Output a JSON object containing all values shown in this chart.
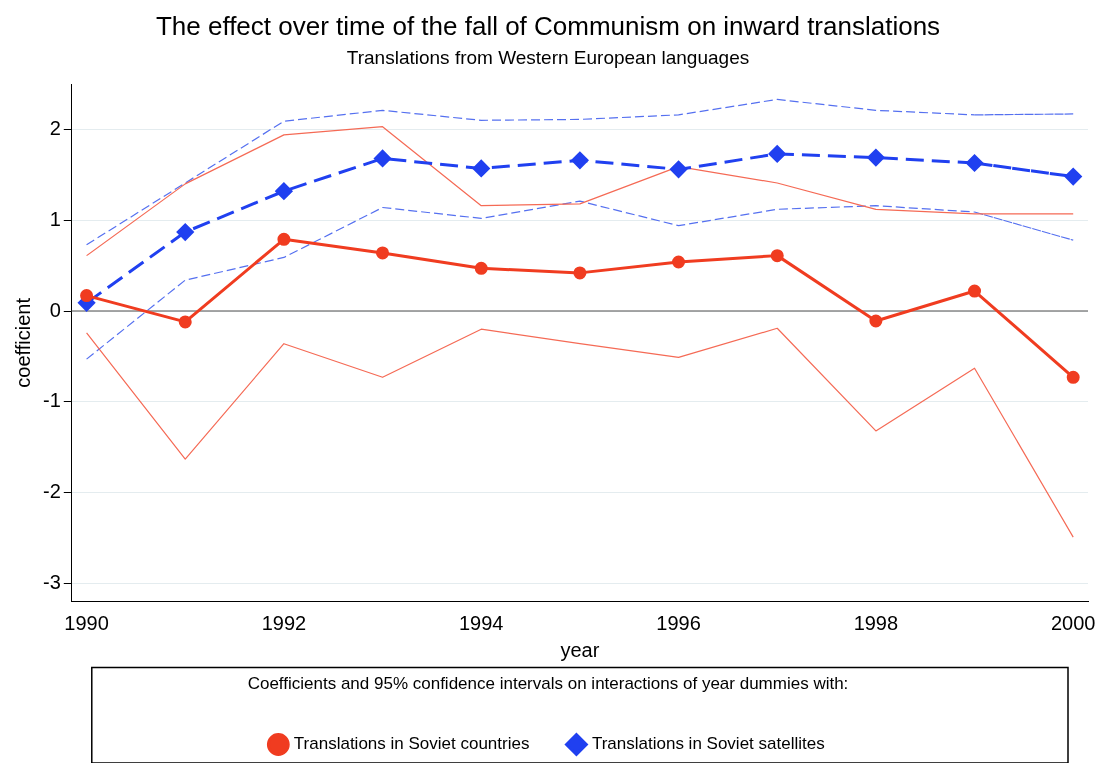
{
  "chart_data": {
    "type": "line",
    "title": "The effect over time of the fall of Communism on inward translations",
    "subtitle": "Translations from Western European languages",
    "xlabel": "year",
    "ylabel": "coefficient",
    "legend_title": "Coefficients and 95% confidence intervals on interactions of year dummies with:",
    "legend": "bottom",
    "grid": "y",
    "x": [
      1990,
      1991,
      1992,
      1993,
      1994,
      1995,
      1996,
      1997,
      1998,
      1999,
      2000
    ],
    "xlim": [
      1989.85,
      2000.15
    ],
    "xticks": [
      1990,
      1992,
      1994,
      1996,
      1998,
      2000
    ],
    "ylim": [
      -3.2,
      2.5
    ],
    "yticks": [
      -3,
      -2,
      -1,
      0,
      1,
      2
    ],
    "ref_lines": [
      {
        "axis": "y",
        "value": 0,
        "color": "#888888"
      }
    ],
    "series": [
      {
        "name": "Translations in Soviet countries",
        "color": "#f03c20",
        "marker": "circle",
        "line_style": "solid",
        "values": [
          0.17,
          -0.12,
          0.79,
          0.64,
          0.47,
          0.42,
          0.54,
          0.61,
          -0.11,
          0.22,
          -0.73
        ]
      },
      {
        "name": "Translations in Soviet satellites",
        "color": "#2040f0",
        "marker": "diamond",
        "line_style": "dashed",
        "values": [
          0.09,
          0.87,
          1.32,
          1.68,
          1.57,
          1.66,
          1.56,
          1.73,
          1.69,
          1.63,
          1.48
        ]
      },
      {
        "color": "#f56a55",
        "marker": "none",
        "line_style": "solid",
        "values": [
          0.61,
          1.4,
          1.94,
          2.03,
          1.16,
          1.18,
          1.59,
          1.41,
          1.12,
          1.07,
          1.07
        ]
      },
      {
        "color": "#f56a55",
        "marker": "none",
        "line_style": "solid",
        "values": [
          -0.24,
          -1.63,
          -0.36,
          -0.73,
          -0.2,
          -0.36,
          -0.51,
          -0.19,
          -1.32,
          -0.63,
          -2.49
        ]
      },
      {
        "color": "#5570f0",
        "marker": "none",
        "line_style": "dashed",
        "values": [
          0.73,
          1.41,
          2.09,
          2.21,
          2.1,
          2.11,
          2.16,
          2.33,
          2.21,
          2.16,
          2.17
        ]
      },
      {
        "color": "#5570f0",
        "marker": "none",
        "line_style": "dashed",
        "values": [
          -0.53,
          0.34,
          0.59,
          1.14,
          1.02,
          1.21,
          0.94,
          1.12,
          1.16,
          1.09,
          0.78
        ]
      }
    ]
  }
}
